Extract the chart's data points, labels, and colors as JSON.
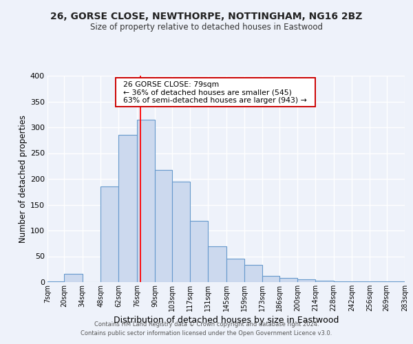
{
  "title": "26, GORSE CLOSE, NEWTHORPE, NOTTINGHAM, NG16 2BZ",
  "subtitle": "Size of property relative to detached houses in Eastwood",
  "xlabel": "Distribution of detached houses by size in Eastwood",
  "ylabel": "Number of detached properties",
  "bar_color": "#ccd9ee",
  "bar_edge_color": "#6699cc",
  "background_color": "#eef2fa",
  "grid_color": "#ffffff",
  "red_line_x": 79,
  "annotation_title": "26 GORSE CLOSE: 79sqm",
  "annotation_line1": "← 36% of detached houses are smaller (545)",
  "annotation_line2": "63% of semi-detached houses are larger (943) →",
  "footer1": "Contains HM Land Registry data © Crown copyright and database right 2024.",
  "footer2": "Contains public sector information licensed under the Open Government Licence v3.0.",
  "bin_edges": [
    7,
    20,
    34,
    48,
    62,
    76,
    90,
    103,
    117,
    131,
    145,
    159,
    173,
    186,
    200,
    214,
    228,
    242,
    256,
    269,
    283
  ],
  "bin_labels": [
    "7sqm",
    "20sqm",
    "34sqm",
    "48sqm",
    "62sqm",
    "76sqm",
    "90sqm",
    "103sqm",
    "117sqm",
    "131sqm",
    "145sqm",
    "159sqm",
    "173sqm",
    "186sqm",
    "200sqm",
    "214sqm",
    "228sqm",
    "242sqm",
    "256sqm",
    "269sqm",
    "283sqm"
  ],
  "counts": [
    2,
    16,
    0,
    185,
    285,
    315,
    218,
    195,
    119,
    70,
    45,
    33,
    12,
    8,
    5,
    3,
    2,
    2,
    1,
    1
  ],
  "ylim": [
    0,
    400
  ],
  "yticks": [
    0,
    50,
    100,
    150,
    200,
    250,
    300,
    350,
    400
  ]
}
